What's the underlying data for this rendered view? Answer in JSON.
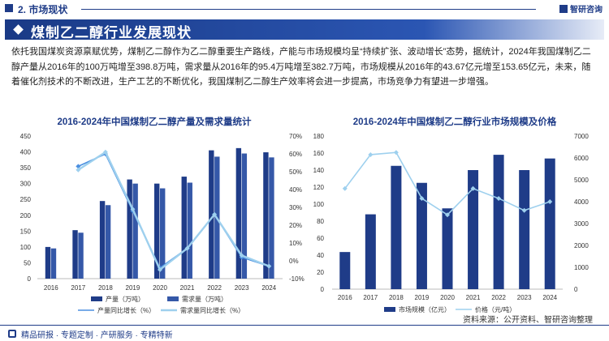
{
  "header": {
    "section": "2. 市场现状",
    "logo_text": "智研咨询",
    "logo_icon": "logo-icon"
  },
  "banner": {
    "title": "煤制乙二醇行业发展现状"
  },
  "paragraph": "依托我国煤炭资源禀赋优势，煤制乙二醇作为乙二醇重要生产路线，产能与市场规模均呈“持续扩张、波动增长”态势，据统计，2024年我国煤制乙二醇产量从2016年的100万吨增至398.8万吨，需求量从2016年的95.4万吨增至382.7万吨，市场规模从2016年的43.67亿元增至153.65亿元，未来，随着催化剂技术的不断改进，生产工艺的不断优化，我国煤制乙二醇生产效率将会进一步提高，市场竞争力有望进一步增强。",
  "source": "资料来源：公开资料、智研咨询整理",
  "footer": {
    "text": "精品研报 · 专题定制 · 产研服务 · 专精特新"
  },
  "colors": {
    "dark_blue": "#1f3c88",
    "mid_blue": "#3558a8",
    "light_line": "#9ed0ee",
    "growth_line": "#4b8fe0"
  },
  "chart_data": [
    {
      "type": "bar",
      "title": "2016-2024年中国煤制乙二醇产量及需求量统计",
      "categories": [
        "2016",
        "2017",
        "2018",
        "2019",
        "2020",
        "2021",
        "2022",
        "2023",
        "2024"
      ],
      "ylim": [
        0,
        450
      ],
      "y_ticks": [
        "0",
        "50",
        "100",
        "150",
        "200",
        "250",
        "300",
        "350",
        "400",
        "450"
      ],
      "y2lim": [
        -10,
        70
      ],
      "y2_ticks": [
        "-10%",
        "0%",
        "10%",
        "20%",
        "30%",
        "40%",
        "50%",
        "60%",
        "70%"
      ],
      "series": [
        {
          "name": "产量（万吨）",
          "kind": "bar",
          "values": [
            100,
            153,
            245,
            313,
            300,
            322,
            405,
            412,
            398.8
          ]
        },
        {
          "name": "需求量（万吨）",
          "kind": "bar",
          "values": [
            95.4,
            145,
            232,
            300,
            285,
            303,
            385,
            395,
            382.7
          ]
        },
        {
          "name": "产量同比增长（%）",
          "kind": "line",
          "axis": "right",
          "values": [
            null,
            53,
            60,
            28,
            -4,
            7,
            26,
            2,
            -3
          ]
        },
        {
          "name": "需求量同比增长（%）",
          "kind": "line",
          "axis": "right",
          "values": [
            null,
            51,
            61,
            29,
            -5,
            7,
            26,
            3,
            -3
          ]
        }
      ]
    },
    {
      "type": "bar",
      "title": "2016-2024年中国煤制乙二醇行业市场规模及价格",
      "categories": [
        "2016",
        "2017",
        "2018",
        "2019",
        "2020",
        "2021",
        "2022",
        "2023",
        "2024"
      ],
      "ylim": [
        0,
        180
      ],
      "y_ticks": [
        "0",
        "20",
        "40",
        "60",
        "80",
        "100",
        "120",
        "140",
        "160",
        "180"
      ],
      "y2lim": [
        0,
        7000
      ],
      "y2_ticks": [
        "0",
        "1000",
        "2000",
        "3000",
        "4000",
        "5000",
        "6000",
        "7000"
      ],
      "series": [
        {
          "name": "市场规模（亿元）",
          "kind": "bar",
          "values": [
            43.67,
            88,
            145,
            125,
            95,
            140,
            158,
            140,
            153.65
          ]
        },
        {
          "name": "价格（元/吨）",
          "kind": "line",
          "axis": "right",
          "values": [
            4600,
            6150,
            6250,
            4150,
            3400,
            4600,
            4150,
            3600,
            4000
          ]
        }
      ]
    }
  ]
}
